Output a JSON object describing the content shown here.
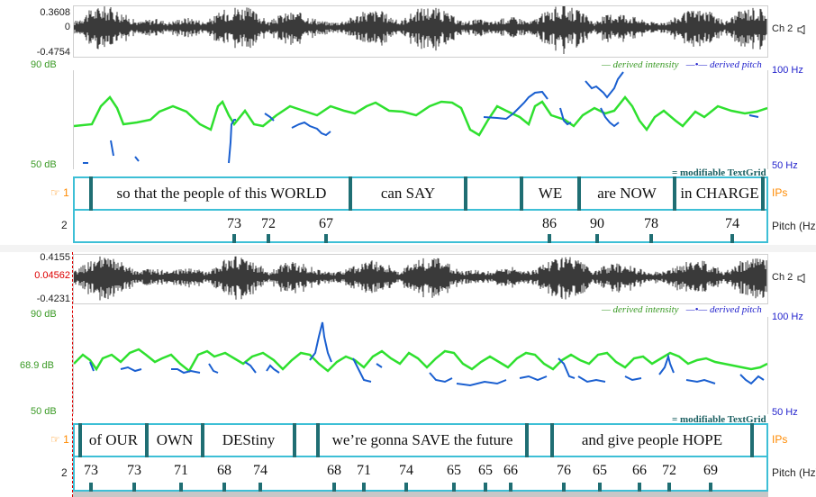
{
  "panels": [
    {
      "wave": {
        "ymax": "0.3608",
        "yzero": "0",
        "ymin": "-0.4754",
        "channel": "Ch 2"
      },
      "analysis": {
        "db_top": "90 dB",
        "db_bottom": "50 dB",
        "hz_top": "100 Hz",
        "hz_bottom": "50 Hz"
      },
      "legend": {
        "intensity": "— derived intensity",
        "pitch": "—•— derived pitch"
      },
      "textgrid_tag": "= modifiable TextGrid",
      "tiers": {
        "ips_num": "1",
        "ips_name": "IPs",
        "pitch_num": "2",
        "pitch_name": "Pitch (Hz)"
      },
      "intervals": [
        "so that the people of this WORLD",
        "can SAY",
        "",
        "WE",
        "are NOW",
        "in CHARGE"
      ],
      "pitch_values": [
        "73",
        "72",
        "67",
        "86",
        "90",
        "78",
        "74"
      ]
    },
    {
      "wave": {
        "ymax": "0.4155",
        "yzero": "0.04562",
        "ymin": "-0.4231",
        "channel": "Ch 2"
      },
      "analysis": {
        "db_top": "90 dB",
        "db_mid": "68.9 dB",
        "db_bottom": "50 dB",
        "hz_top": "100 Hz",
        "hz_bottom": "50 Hz"
      },
      "legend": {
        "intensity": "— derived intensity",
        "pitch": "—•— derived pitch"
      },
      "textgrid_tag": "= modifiable TextGrid",
      "tiers": {
        "ips_num": "1",
        "ips_name": "IPs",
        "pitch_num": "2",
        "pitch_name": "Pitch (Hz)"
      },
      "intervals": [
        "of OUR",
        "OWN",
        "DEStiny",
        "",
        "we’re gonna SAVE the future",
        "",
        "and give people HOPE"
      ],
      "pitch_values": [
        "73",
        "73",
        "71",
        "68",
        "74",
        "68",
        "71",
        "74",
        "65",
        "65",
        "66",
        "76",
        "65",
        "66",
        "72",
        "69"
      ]
    }
  ],
  "colors": {
    "intensity": "#2fe02f",
    "pitch": "#1a5fd0",
    "tier_border": "#3dbfd6",
    "boundary": "#1f6e73",
    "tier_name": "#ff8a00"
  },
  "icons": {
    "speaker": "speaker-icon",
    "hand": "pointing-hand-icon"
  }
}
